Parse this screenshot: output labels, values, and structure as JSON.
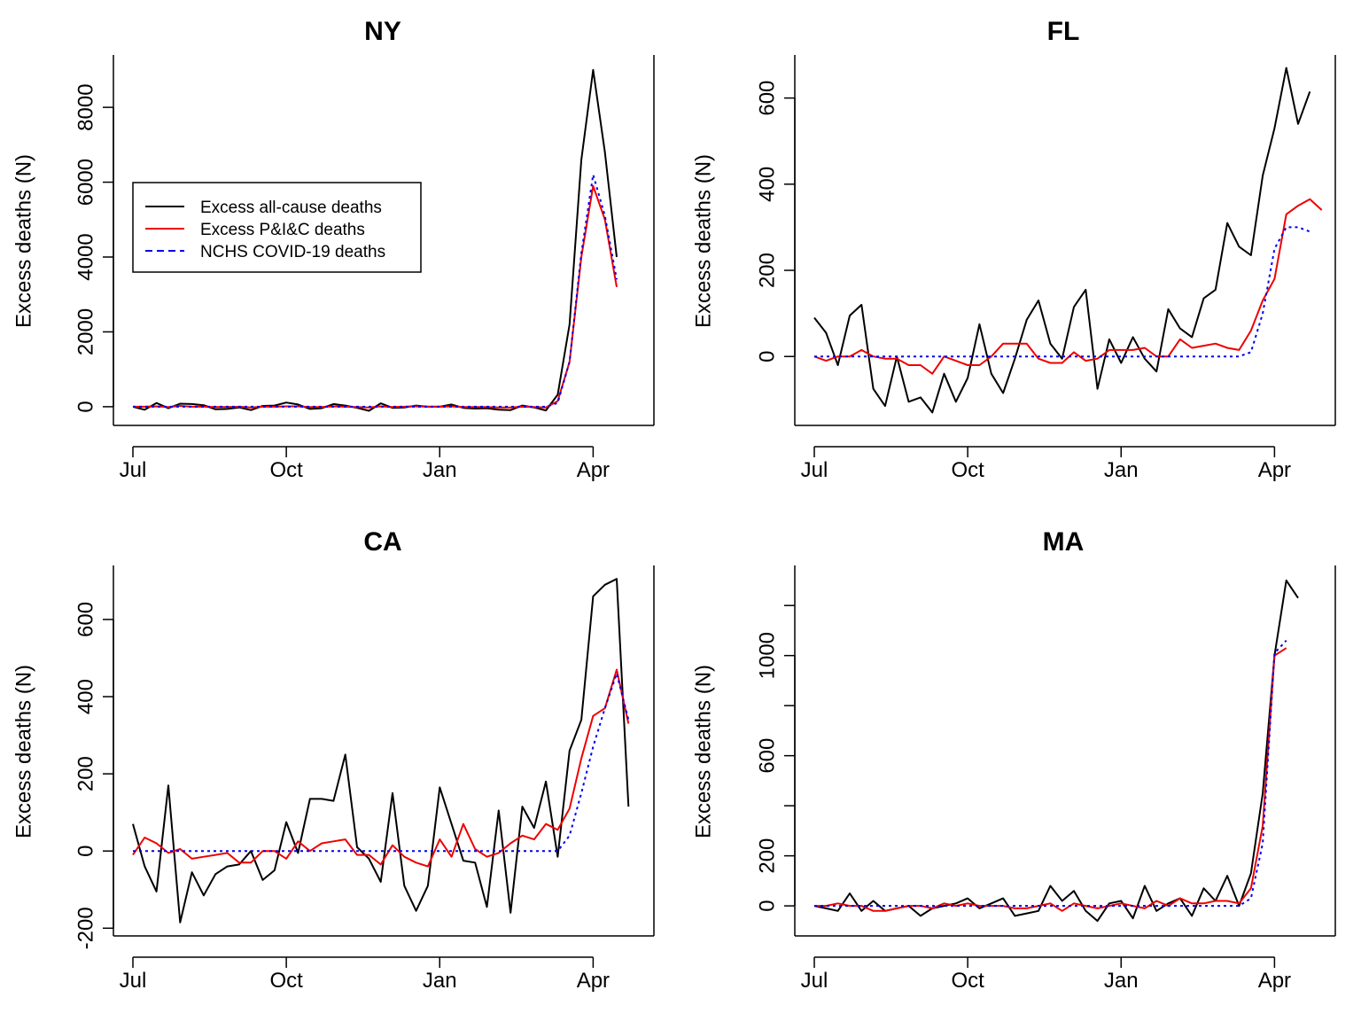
{
  "chart_data": [
    {
      "type": "line",
      "title": "NY",
      "ylabel": "Excess deaths (N)",
      "xlabel": "",
      "x_ticks": [
        "Jul",
        "Oct",
        "Jan",
        "Apr"
      ],
      "y_ticks": [
        0,
        2000,
        4000,
        6000,
        8000
      ],
      "ylim": [
        -500,
        9400
      ],
      "x_range_weeks": [
        0,
        39
      ],
      "legend": {
        "position": "left",
        "entries": [
          "Excess all-cause deaths",
          "Excess P&I&C deaths",
          "NCHS COVID-19 deaths"
        ]
      },
      "series": [
        {
          "name": "Excess all-cause deaths",
          "color": "#000000",
          "dash": "solid",
          "values": [
            0,
            -80,
            100,
            -40,
            80,
            70,
            40,
            -70,
            -60,
            -20,
            -90,
            20,
            30,
            110,
            60,
            -60,
            -40,
            70,
            30,
            -30,
            -110,
            90,
            -30,
            -20,
            30,
            0,
            0,
            60,
            -30,
            -50,
            -40,
            -80,
            -90,
            30,
            -20,
            -100,
            320,
            2200,
            6600,
            9000,
            6800,
            4000
          ]
        },
        {
          "name": "Excess P&I&C deaths",
          "color": "#ee0000",
          "dash": "solid",
          "values": [
            0,
            0,
            10,
            -10,
            20,
            0,
            0,
            -10,
            -10,
            0,
            -20,
            0,
            0,
            10,
            10,
            -10,
            -10,
            10,
            0,
            -10,
            -20,
            10,
            -10,
            0,
            10,
            0,
            0,
            10,
            -10,
            -10,
            -10,
            -20,
            -20,
            0,
            -10,
            -20,
            150,
            1200,
            4000,
            5900,
            5000,
            3200
          ]
        },
        {
          "name": "NCHS COVID-19 deaths",
          "color": "#0000ee",
          "dash": "dotted",
          "values": [
            0,
            0,
            0,
            0,
            0,
            0,
            0,
            0,
            0,
            0,
            0,
            0,
            0,
            0,
            0,
            0,
            0,
            0,
            0,
            0,
            0,
            0,
            0,
            0,
            0,
            0,
            0,
            0,
            0,
            0,
            0,
            0,
            0,
            0,
            0,
            0,
            100,
            1200,
            4100,
            6200,
            5100,
            3400
          ]
        }
      ]
    },
    {
      "type": "line",
      "title": "FL",
      "ylabel": "Excess deaths (N)",
      "xlabel": "",
      "x_ticks": [
        "Jul",
        "Oct",
        "Jan",
        "Apr"
      ],
      "y_ticks": [
        0,
        200,
        400,
        600
      ],
      "ylim": [
        -160,
        700
      ],
      "x_range_weeks": [
        0,
        39
      ],
      "series": [
        {
          "name": "Excess all-cause deaths",
          "color": "#000000",
          "dash": "solid",
          "values": [
            90,
            55,
            -20,
            95,
            120,
            -75,
            -115,
            0,
            -105,
            -95,
            -130,
            -40,
            -105,
            -50,
            75,
            -40,
            -85,
            -5,
            85,
            130,
            30,
            -5,
            115,
            155,
            -75,
            40,
            -15,
            45,
            -5,
            -35,
            110,
            65,
            45,
            135,
            155,
            310,
            255,
            235,
            420,
            530,
            670,
            540,
            615
          ]
        },
        {
          "name": "Excess P&I&C deaths",
          "color": "#ee0000",
          "dash": "solid",
          "values": [
            0,
            -10,
            0,
            0,
            15,
            0,
            -5,
            -5,
            -20,
            -20,
            -40,
            0,
            -10,
            -20,
            -20,
            0,
            30,
            30,
            30,
            -5,
            -15,
            -15,
            10,
            -10,
            -5,
            15,
            15,
            15,
            20,
            0,
            0,
            40,
            20,
            25,
            30,
            20,
            15,
            60,
            130,
            180,
            330,
            350,
            365,
            340
          ]
        },
        {
          "name": "NCHS COVID-19 deaths",
          "color": "#0000ee",
          "dash": "dotted",
          "values": [
            0,
            0,
            0,
            0,
            0,
            0,
            0,
            0,
            0,
            0,
            0,
            0,
            0,
            0,
            0,
            0,
            0,
            0,
            0,
            0,
            0,
            0,
            0,
            0,
            0,
            0,
            0,
            0,
            0,
            0,
            0,
            0,
            0,
            0,
            0,
            0,
            0,
            10,
            100,
            250,
            300,
            300,
            290
          ]
        }
      ]
    },
    {
      "type": "line",
      "title": "CA",
      "ylabel": "Excess deaths (N)",
      "xlabel": "",
      "x_ticks": [
        "Jul",
        "Oct",
        "Jan",
        "Apr"
      ],
      "y_ticks": [
        -200,
        0,
        200,
        400,
        600
      ],
      "ylim": [
        -220,
        740
      ],
      "x_range_weeks": [
        0,
        39
      ],
      "series": [
        {
          "name": "Excess all-cause deaths",
          "color": "#000000",
          "dash": "solid",
          "values": [
            70,
            -40,
            -105,
            170,
            -185,
            -55,
            -115,
            -60,
            -40,
            -35,
            0,
            -75,
            -50,
            75,
            -5,
            135,
            135,
            130,
            250,
            10,
            -20,
            -80,
            150,
            -90,
            -155,
            -90,
            165,
            70,
            -25,
            -30,
            -145,
            105,
            -160,
            115,
            60,
            180,
            -15,
            260,
            340,
            660,
            690,
            705,
            115
          ]
        },
        {
          "name": "Excess P&I&C deaths",
          "color": "#ee0000",
          "dash": "solid",
          "values": [
            -10,
            35,
            20,
            -5,
            5,
            -20,
            -15,
            -10,
            -5,
            -30,
            -30,
            0,
            0,
            -20,
            25,
            0,
            20,
            25,
            30,
            -10,
            -10,
            -35,
            15,
            -15,
            -30,
            -40,
            30,
            -15,
            70,
            5,
            -15,
            -5,
            20,
            40,
            30,
            70,
            55,
            110,
            240,
            350,
            370,
            470,
            330
          ]
        },
        {
          "name": "NCHS COVID-19 deaths",
          "color": "#0000ee",
          "dash": "dotted",
          "values": [
            0,
            0,
            0,
            0,
            0,
            0,
            0,
            0,
            0,
            0,
            0,
            0,
            0,
            0,
            0,
            0,
            0,
            0,
            0,
            0,
            0,
            0,
            0,
            0,
            0,
            0,
            0,
            0,
            0,
            0,
            0,
            0,
            0,
            0,
            0,
            0,
            0,
            40,
            150,
            270,
            370,
            460,
            340
          ]
        }
      ]
    },
    {
      "type": "line",
      "title": "MA",
      "ylabel": "Excess deaths (N)",
      "xlabel": "",
      "x_ticks": [
        "Jul",
        "Oct",
        "Jan",
        "Apr"
      ],
      "y_ticks": [
        0,
        200,
        600,
        1000
      ],
      "ylim": [
        -120,
        1360
      ],
      "x_range_weeks": [
        0,
        39
      ],
      "series": [
        {
          "name": "Excess all-cause deaths",
          "color": "#000000",
          "dash": "solid",
          "values": [
            0,
            -10,
            -20,
            50,
            -20,
            20,
            -20,
            -10,
            0,
            -40,
            -10,
            0,
            10,
            30,
            -10,
            10,
            30,
            -40,
            -30,
            -20,
            80,
            20,
            60,
            -20,
            -60,
            10,
            20,
            -50,
            80,
            -20,
            10,
            30,
            -40,
            70,
            20,
            120,
            0,
            130,
            450,
            1000,
            1300,
            1230
          ]
        },
        {
          "name": "Excess P&I&C deaths",
          "color": "#ee0000",
          "dash": "solid",
          "values": [
            0,
            0,
            10,
            0,
            0,
            -20,
            -20,
            -10,
            0,
            0,
            -10,
            10,
            0,
            10,
            0,
            0,
            0,
            -10,
            -10,
            0,
            10,
            -20,
            10,
            0,
            -10,
            0,
            10,
            0,
            -10,
            20,
            0,
            30,
            10,
            10,
            20,
            20,
            10,
            70,
            320,
            1000,
            1030
          ]
        },
        {
          "name": "NCHS COVID-19 deaths",
          "color": "#0000ee",
          "dash": "dotted",
          "values": [
            0,
            0,
            0,
            0,
            0,
            0,
            0,
            0,
            0,
            0,
            0,
            0,
            0,
            0,
            0,
            0,
            0,
            0,
            0,
            0,
            0,
            0,
            0,
            0,
            0,
            0,
            0,
            0,
            0,
            0,
            0,
            0,
            0,
            0,
            0,
            0,
            0,
            30,
            250,
            1010,
            1060
          ]
        }
      ]
    }
  ]
}
